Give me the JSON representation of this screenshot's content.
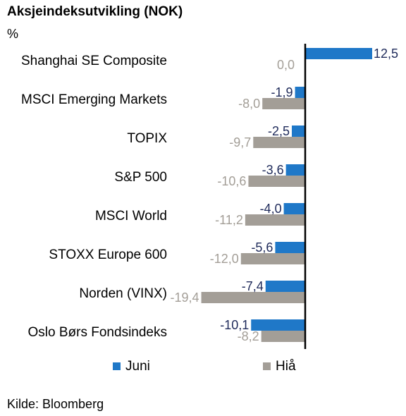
{
  "chart_data": {
    "type": "bar",
    "orientation": "horizontal",
    "title": "Aksjeindeksutvikling (NOK)",
    "unit": "%",
    "categories": [
      "Shanghai SE Composite",
      "MSCI Emerging Markets",
      "TOPIX",
      "S&P 500",
      "MSCI World",
      "STOXX Europe 600",
      "Norden (VINX)",
      "Oslo Børs Fondsindeks"
    ],
    "series": [
      {
        "name": "Juni",
        "color": "#1f78c8",
        "values": [
          12.5,
          -1.9,
          -2.5,
          -3.6,
          -4.0,
          -5.6,
          -7.4,
          -10.1
        ],
        "labels": [
          "12,5",
          "-1,9",
          "-2,5",
          "-3,6",
          "-4,0",
          "-5,6",
          "-7,4",
          "-10,1"
        ]
      },
      {
        "name": "Hiå",
        "color": "#a39e97",
        "values": [
          0.0,
          -8.0,
          -9.7,
          -10.6,
          -11.2,
          -12.0,
          -19.4,
          -8.2
        ],
        "labels": [
          "0,0",
          "-8,0",
          "-9,7",
          "-10,6",
          "-11,2",
          "-12,0",
          "-19,4",
          "-8,2"
        ]
      }
    ],
    "legend_position": "bottom",
    "grid": false
  },
  "source": "Kilde: Bloomberg"
}
